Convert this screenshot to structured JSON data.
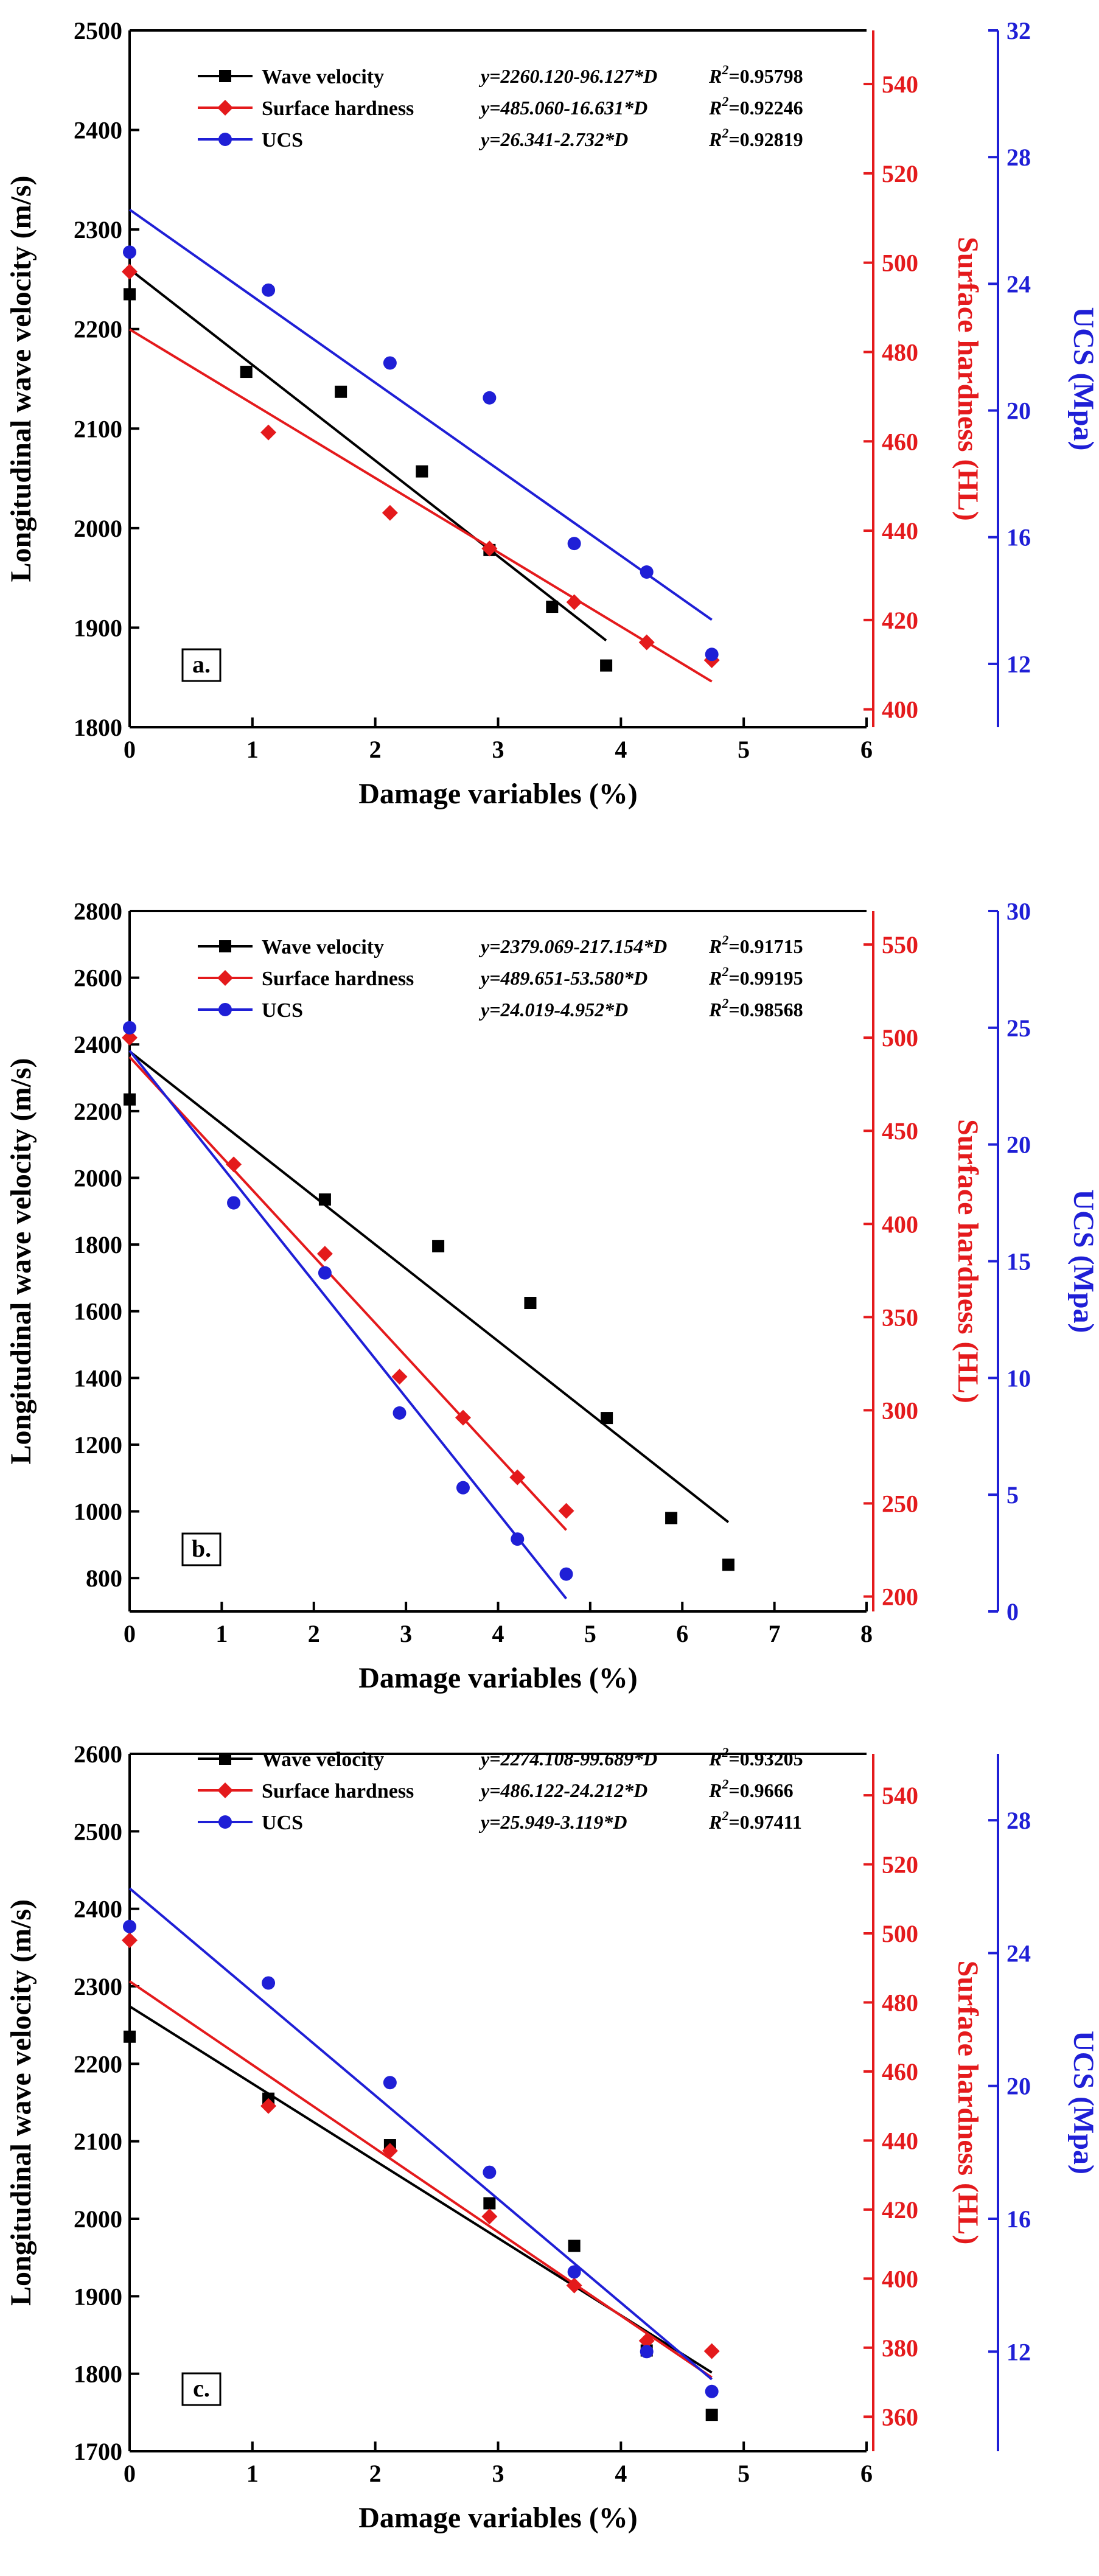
{
  "chart_data": [
    {
      "type": "scatter",
      "panel_label": "a.",
      "xlabel": "Damage variables  (%)",
      "xlim": [
        0,
        6
      ],
      "xticks": [
        "0",
        "1",
        "2",
        "3",
        "4",
        "5",
        "6"
      ],
      "axes": {
        "left": {
          "label": "Longitudinal wave velocity (m/s)",
          "ylim": [
            1800,
            2500
          ],
          "ticks": [
            "1800",
            "1900",
            "2000",
            "2100",
            "2200",
            "2300",
            "2400",
            "2500"
          ],
          "color": "#000000"
        },
        "right1": {
          "label": "Surface hardness (HL)",
          "ylim": [
            396,
            552
          ],
          "ticks": [
            "400",
            "420",
            "440",
            "460",
            "480",
            "500",
            "520",
            "540"
          ],
          "color": "#e41a1c"
        },
        "right2": {
          "label": "UCS (Mpa)",
          "ylim": [
            10,
            32
          ],
          "ticks": [
            "12",
            "16",
            "20",
            "24",
            "28",
            "32"
          ],
          "color": "#1f1fd6"
        }
      },
      "series": [
        {
          "name": "Wave velocity",
          "axis": "left",
          "color": "#000000",
          "marker": "square",
          "equation_prefix": "y=2260.120-96.127*",
          "equation_var": "D",
          "r2_prefix": "R",
          "r2_sup": "2",
          "r2_suffix": "=0.95798",
          "x": [
            0,
            0.95,
            1.72,
            2.38,
            2.93,
            3.44,
            3.88
          ],
          "y": [
            2235,
            2157,
            2137,
            2057,
            1978,
            1921,
            1862
          ],
          "fit": {
            "intercept": 2260.12,
            "slope": -96.127,
            "x_range": [
              0,
              3.88
            ]
          }
        },
        {
          "name": "Surface hardness",
          "axis": "right1",
          "color": "#e41a1c",
          "marker": "diamond",
          "equation_prefix": "y=485.060-16.631*",
          "equation_var": "D",
          "r2_prefix": "R",
          "r2_sup": "2",
          "r2_suffix": "=0.92246",
          "x": [
            0,
            1.13,
            2.12,
            2.93,
            3.62,
            4.21,
            4.74
          ],
          "y": [
            498,
            462,
            444,
            436,
            424,
            415,
            411
          ],
          "fit": {
            "intercept": 485.06,
            "slope": -16.631,
            "x_range": [
              0,
              4.74
            ]
          }
        },
        {
          "name": "UCS",
          "axis": "right2",
          "color": "#1f1fd6",
          "marker": "circle",
          "equation_prefix": "y=26.341-2.732*",
          "equation_var": "D",
          "r2_prefix": "R",
          "r2_sup": "2",
          "r2_suffix": "=0.92819",
          "x": [
            0,
            1.13,
            2.12,
            2.93,
            3.62,
            4.21,
            4.74
          ],
          "y": [
            25.0,
            23.8,
            21.5,
            20.4,
            15.8,
            14.9,
            12.3
          ],
          "fit": {
            "intercept": 26.341,
            "slope": -2.732,
            "x_range": [
              0,
              4.74
            ]
          }
        }
      ]
    },
    {
      "type": "scatter",
      "panel_label": "b.",
      "xlabel": "Damage variables  (%)",
      "xlim": [
        0,
        8
      ],
      "xticks": [
        "0",
        "1",
        "2",
        "3",
        "4",
        "5",
        "6",
        "7",
        "8"
      ],
      "axes": {
        "left": {
          "label": "Longitudinal wave velocity (m/s)",
          "ylim": [
            700,
            2800
          ],
          "ticks": [
            "800",
            "1000",
            "1200",
            "1400",
            "1600",
            "1800",
            "2000",
            "2200",
            "2400",
            "2600",
            "2800"
          ],
          "color": "#000000"
        },
        "right1": {
          "label": "Surface hardness (HL)",
          "ylim": [
            192,
            568
          ],
          "ticks": [
            "200",
            "250",
            "300",
            "350",
            "400",
            "450",
            "500",
            "550"
          ],
          "color": "#e41a1c"
        },
        "right2": {
          "label": "UCS (Mpa)",
          "ylim": [
            0,
            30
          ],
          "ticks": [
            "0",
            "5",
            "10",
            "15",
            "20",
            "25",
            "30"
          ],
          "color": "#1f1fd6"
        }
      },
      "series": [
        {
          "name": "Wave velocity",
          "axis": "left",
          "color": "#000000",
          "marker": "square",
          "equation_prefix": "y=2379.069-217.154*",
          "equation_var": "D",
          "r2_prefix": "R",
          "r2_sup": "2",
          "r2_suffix": "=0.91715",
          "x": [
            0,
            2.12,
            3.35,
            4.35,
            5.18,
            5.88,
            6.5
          ],
          "y": [
            2235,
            1935,
            1795,
            1625,
            1280,
            980,
            840
          ],
          "fit": {
            "intercept": 2379.069,
            "slope": -217.154,
            "x_range": [
              0,
              6.5
            ]
          }
        },
        {
          "name": "Surface hardness",
          "axis": "right1",
          "color": "#e41a1c",
          "marker": "diamond",
          "equation_prefix": "y=489.651-53.580*",
          "equation_var": "D",
          "r2_prefix": "R",
          "r2_sup": "2",
          "r2_suffix": "=0.99195",
          "x": [
            0,
            1.13,
            2.12,
            2.93,
            3.62,
            4.21,
            4.74
          ],
          "y": [
            500,
            432,
            384,
            318,
            296,
            264,
            246
          ],
          "fit": {
            "intercept": 489.651,
            "slope": -53.58,
            "x_range": [
              0,
              4.74
            ]
          }
        },
        {
          "name": "UCS",
          "axis": "right2",
          "color": "#1f1fd6",
          "marker": "circle",
          "equation_prefix": "y=24.019-4.952*",
          "equation_var": "D",
          "r2_prefix": "R",
          "r2_sup": "2",
          "r2_suffix": "=0.98568",
          "x": [
            0,
            1.13,
            2.12,
            2.93,
            3.62,
            4.21,
            4.74
          ],
          "y": [
            25.0,
            17.5,
            14.5,
            8.5,
            5.3,
            3.1,
            1.6
          ],
          "fit": {
            "intercept": 24.019,
            "slope": -4.952,
            "x_range": [
              0,
              4.74
            ]
          }
        }
      ]
    },
    {
      "type": "scatter",
      "panel_label": "c.",
      "xlabel": "Damage variables  (%)",
      "xlim": [
        0,
        6
      ],
      "xticks": [
        "0",
        "1",
        "2",
        "3",
        "4",
        "5",
        "6"
      ],
      "axes": {
        "left": {
          "label": "Longitudinal wave velocity (m/s)",
          "ylim": [
            1700,
            2600
          ],
          "ticks": [
            "1700",
            "1800",
            "1900",
            "2000",
            "2100",
            "2200",
            "2300",
            "2400",
            "2500",
            "2600"
          ],
          "color": "#000000"
        },
        "right1": {
          "label": "Surface hardness (HL)",
          "ylim": [
            350,
            552
          ],
          "ticks": [
            "360",
            "380",
            "400",
            "420",
            "440",
            "460",
            "480",
            "500",
            "520",
            "540"
          ],
          "color": "#e41a1c"
        },
        "right2": {
          "label": "UCS (Mpa)",
          "ylim": [
            9,
            30
          ],
          "ticks": [
            "12",
            "16",
            "20",
            "24",
            "28"
          ],
          "color": "#1f1fd6"
        }
      },
      "series": [
        {
          "name": "Wave velocity",
          "axis": "left",
          "color": "#000000",
          "marker": "square",
          "equation_prefix": "y=2274.108-99.689*",
          "equation_var": "D",
          "r2_prefix": "R",
          "r2_sup": "2",
          "r2_suffix": "=0.93205",
          "x": [
            0,
            1.13,
            2.12,
            2.93,
            3.62,
            4.21,
            4.74
          ],
          "y": [
            2235,
            2155,
            2095,
            2020,
            1965,
            1830,
            1747
          ],
          "fit": {
            "intercept": 2274.108,
            "slope": -99.689,
            "x_range": [
              0,
              4.74
            ]
          }
        },
        {
          "name": "Surface hardness",
          "axis": "right1",
          "color": "#e41a1c",
          "marker": "diamond",
          "equation_prefix": "y=486.122-24.212*",
          "equation_var": "D",
          "r2_prefix": "R",
          "r2_sup": "2",
          "r2_suffix": "=0.9666",
          "x": [
            0,
            1.13,
            2.12,
            2.93,
            3.62,
            4.21,
            4.74
          ],
          "y": [
            498,
            450,
            437,
            418,
            398,
            382,
            379
          ],
          "fit": {
            "intercept": 486.122,
            "slope": -24.212,
            "x_range": [
              0,
              4.74
            ]
          }
        },
        {
          "name": "UCS",
          "axis": "right2",
          "color": "#1f1fd6",
          "marker": "circle",
          "equation_prefix": "y=25.949-3.119*",
          "equation_var": "D",
          "r2_prefix": "R",
          "r2_sup": "2",
          "r2_suffix": "=0.97411",
          "x": [
            0,
            1.13,
            2.12,
            2.93,
            3.62,
            4.21,
            4.74
          ],
          "y": [
            24.8,
            23.1,
            20.1,
            17.4,
            14.4,
            12.0,
            10.8
          ],
          "fit": {
            "intercept": 25.949,
            "slope": -3.119,
            "x_range": [
              0,
              4.74
            ]
          }
        }
      ]
    }
  ]
}
